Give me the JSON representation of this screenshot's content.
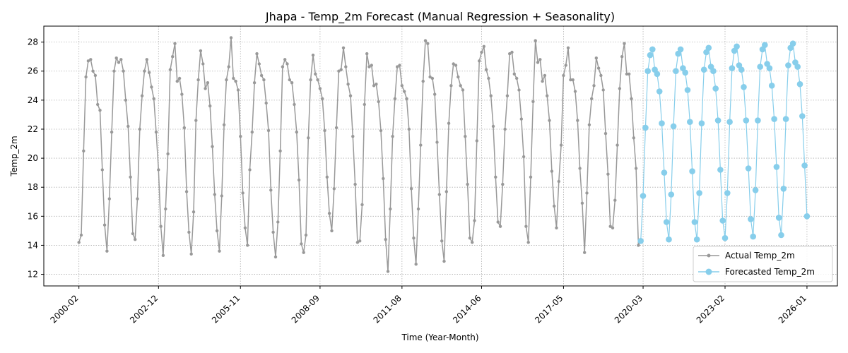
{
  "chart_data": {
    "type": "line",
    "title": "Jhapa - Temp_2m Forecast (Manual Regression + Seasonality)",
    "xlabel": "Time (Year-Month)",
    "ylabel": "Temp_2m",
    "x_ticks": [
      "2000-02",
      "2002-12",
      "2005-11",
      "2008-09",
      "2011-08",
      "2014-06",
      "2017-05",
      "2020-03",
      "2023-02",
      "2026-01"
    ],
    "y_ticks": [
      12,
      14,
      16,
      18,
      20,
      22,
      24,
      26,
      28
    ],
    "xlim": [
      "1998-11",
      "2027-02"
    ],
    "ylim": [
      11.2,
      29.1
    ],
    "grid": true,
    "legend_position": "lower-right",
    "series": [
      {
        "name": "Actual Temp_2m",
        "color": "#999999",
        "start": "2000-02",
        "frequency": "monthly",
        "values": [
          14.2,
          14.7,
          20.5,
          25.6,
          26.7,
          26.8,
          26.0,
          25.7,
          23.7,
          23.3,
          19.2,
          15.4,
          13.6,
          17.2,
          21.8,
          26.0,
          26.9,
          26.6,
          26.8,
          26.0,
          24.0,
          22.2,
          18.7,
          14.8,
          14.4,
          17.2,
          22.0,
          24.3,
          26.0,
          26.8,
          25.9,
          24.9,
          24.1,
          21.8,
          19.2,
          15.3,
          13.3,
          16.5,
          20.3,
          26.1,
          27.0,
          27.9,
          25.3,
          25.5,
          24.4,
          22.1,
          17.7,
          14.9,
          13.4,
          16.3,
          22.6,
          25.4,
          27.4,
          26.5,
          24.8,
          25.2,
          23.6,
          20.8,
          17.5,
          15.0,
          13.6,
          17.4,
          22.3,
          25.4,
          26.3,
          28.3,
          25.5,
          25.3,
          24.7,
          21.5,
          17.6,
          15.2,
          14.0,
          19.2,
          21.8,
          25.2,
          27.2,
          26.5,
          25.7,
          25.4,
          23.8,
          21.9,
          17.8,
          14.9,
          13.2,
          15.6,
          20.5,
          26.3,
          26.8,
          26.5,
          25.4,
          25.2,
          23.7,
          21.8,
          18.5,
          14.1,
          13.5,
          14.7,
          21.4,
          25.4,
          27.1,
          25.8,
          25.4,
          24.8,
          24.1,
          21.9,
          18.7,
          16.2,
          15.0,
          17.9,
          22.1,
          26.0,
          26.1,
          27.6,
          26.3,
          25.1,
          24.3,
          21.5,
          18.2,
          14.2,
          14.3,
          16.8,
          23.7,
          27.2,
          26.3,
          26.4,
          25.0,
          25.1,
          23.9,
          21.9,
          18.6,
          14.4,
          12.2,
          16.5,
          21.5,
          24.1,
          26.3,
          26.4,
          25.0,
          24.6,
          24.1,
          22.0,
          17.9,
          14.5,
          12.7,
          16.5,
          20.9,
          25.3,
          28.1,
          27.9,
          25.6,
          25.5,
          24.4,
          21.1,
          17.5,
          14.3,
          12.9,
          17.7,
          22.4,
          25.0,
          26.5,
          26.4,
          25.6,
          25.0,
          24.7,
          21.5,
          18.2,
          14.5,
          14.2,
          15.7,
          21.2,
          26.7,
          27.3,
          27.7,
          26.1,
          25.5,
          24.3,
          22.2,
          18.7,
          15.6,
          15.3,
          18.2,
          22.0,
          24.3,
          27.2,
          27.3,
          25.8,
          25.5,
          24.7,
          22.7,
          20.1,
          15.3,
          14.2,
          18.7,
          23.9,
          28.1,
          26.6,
          26.8,
          25.3,
          25.7,
          24.3,
          22.6,
          19.1,
          16.7,
          15.2,
          18.4,
          20.9,
          25.7,
          26.4,
          27.6,
          25.4,
          25.4,
          24.6,
          22.6,
          19.3,
          16.9,
          13.5,
          17.6,
          22.3,
          24.1,
          25.0,
          26.9,
          26.2,
          25.7,
          24.7,
          21.7,
          18.9,
          15.3,
          15.2,
          17.1,
          20.9,
          24.8,
          27.0,
          27.9,
          25.8,
          25.8,
          24.1,
          21.4,
          19.3,
          14.0,
          14.3
        ]
      },
      {
        "name": "Forecasted Temp_2m",
        "color": "#87ceeb",
        "start": "2020-02",
        "frequency": "monthly",
        "values": [
          14.3,
          17.4,
          22.1,
          26.0,
          27.1,
          27.5,
          26.1,
          25.8,
          24.6,
          22.4,
          19.0,
          15.6,
          14.4,
          17.5,
          22.2,
          26.0,
          27.2,
          27.5,
          26.2,
          25.9,
          24.7,
          22.5,
          19.1,
          15.6,
          14.4,
          17.6,
          22.4,
          26.1,
          27.3,
          27.6,
          26.3,
          26.0,
          24.8,
          22.6,
          19.2,
          15.7,
          14.5,
          17.6,
          22.5,
          26.2,
          27.4,
          27.7,
          26.4,
          26.1,
          24.9,
          22.6,
          19.3,
          15.8,
          14.6,
          17.8,
          22.6,
          26.3,
          27.5,
          27.8,
          26.5,
          26.2,
          25.0,
          22.7,
          19.4,
          15.9,
          14.7,
          17.9,
          22.7,
          26.4,
          27.6,
          27.9,
          26.6,
          26.3,
          25.1,
          22.9,
          19.5,
          16.0
        ]
      }
    ]
  }
}
